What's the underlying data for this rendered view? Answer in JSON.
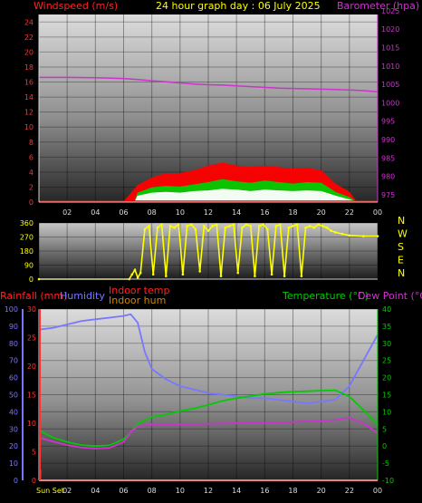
{
  "header": {
    "left_label": "Windspeed (m/s)",
    "title": "24 hour graph day : 06 July 2025",
    "right_label": "Barometer (hpa)"
  },
  "bottom_header": {
    "rainfall": "Rainfall (mm)",
    "humidity": "Humidity",
    "indoor_temp": "Indoor temp",
    "indoor_hum": "Indoor hum",
    "temperature": "Temperature (°C)",
    "dew_point": "Dew Point (°C)"
  },
  "x_tick_labels": [
    "02",
    "04",
    "06",
    "08",
    "10",
    "12",
    "14",
    "16",
    "18",
    "20",
    "22",
    "00"
  ],
  "sunset_label": "Sun Set",
  "compass_labels": [
    "N",
    "W",
    "S",
    "E",
    "N"
  ],
  "colors": {
    "wind": "#ff0000",
    "gust": "#00cc00",
    "wind_avg": "#ffffff",
    "barometer": "#cc33cc",
    "direction": "#ffff00",
    "rain": "#ff3333",
    "humidity": "#7777ff",
    "indoor": "#cc8800",
    "temperature": "#00cc00",
    "dewpoint": "#cc33cc",
    "title": "#ffff00"
  },
  "chart_data": [
    {
      "type": "area",
      "panel": "wind_barometer",
      "x_unit": "hour",
      "x_range": [
        0,
        24
      ],
      "ylabel": "Windspeed (m/s)",
      "ylim": [
        0,
        25
      ],
      "y_ticks": [
        0,
        2,
        4,
        6,
        8,
        10,
        12,
        14,
        16,
        18,
        20,
        22,
        24
      ],
      "y2label": "Barometer (hpa)",
      "y2lim": [
        973,
        1024
      ],
      "y2_ticks": [
        975,
        980,
        985,
        990,
        995,
        1000,
        1005,
        1010,
        1015,
        1020,
        1025
      ],
      "grid": true,
      "series": [
        {
          "name": "Windspeed (m/s)",
          "role": "gust",
          "x": [
            0,
            6,
            7,
            8,
            9,
            10,
            11,
            12,
            13,
            14,
            15,
            16,
            17,
            18,
            19,
            20,
            21,
            22,
            22.5,
            24
          ],
          "values": [
            0,
            0,
            2.2,
            3.2,
            3.8,
            3.8,
            4.2,
            4.8,
            5.2,
            4.8,
            4.6,
            4.8,
            4.6,
            4.4,
            4.5,
            4.2,
            2.4,
            1.3,
            0,
            0
          ]
        },
        {
          "role": "wind",
          "x": [
            0,
            6.8,
            7,
            8,
            9,
            10,
            11,
            12,
            13,
            14,
            15,
            16,
            17,
            18,
            19,
            20,
            21,
            22,
            22.5,
            24
          ],
          "values": [
            0,
            0,
            1.2,
            1.9,
            2.1,
            2.0,
            2.3,
            2.6,
            3.0,
            2.7,
            2.5,
            2.8,
            2.6,
            2.4,
            2.6,
            2.5,
            1.3,
            0.6,
            0,
            0
          ]
        },
        {
          "role": "wind_avg",
          "x": [
            0,
            6.8,
            7,
            8,
            9,
            10,
            11,
            12,
            13,
            14,
            15,
            16,
            17,
            18,
            19,
            20,
            21,
            22,
            22.5,
            24
          ],
          "values": [
            0,
            0,
            0.8,
            1.2,
            1.3,
            1.2,
            1.4,
            1.5,
            1.7,
            1.6,
            1.4,
            1.6,
            1.5,
            1.4,
            1.5,
            1.4,
            0.8,
            0.3,
            0,
            0
          ]
        },
        {
          "name": "Barometer (hpa)",
          "role": "barometer",
          "x": [
            0,
            2,
            4,
            6,
            7,
            8,
            9,
            10,
            11,
            12,
            13,
            14,
            15,
            16,
            17,
            18,
            19,
            20,
            21,
            22,
            23,
            24
          ],
          "values": [
            1006.9,
            1006.9,
            1006.8,
            1006.6,
            1006.3,
            1006.0,
            1005.7,
            1005.4,
            1005.1,
            1004.9,
            1004.8,
            1004.6,
            1004.4,
            1004.2,
            1004.0,
            1003.9,
            1003.8,
            1003.7,
            1003.6,
            1003.5,
            1003.3,
            1003.0
          ]
        }
      ]
    },
    {
      "type": "scatter",
      "panel": "wind_direction",
      "x_range": [
        0,
        24
      ],
      "ylim": [
        0,
        360
      ],
      "y_ticks": [
        0,
        90,
        180,
        270,
        360
      ],
      "series": [
        {
          "role": "direction",
          "x": [
            0,
            6.4,
            6.6,
            6.8,
            7.0,
            7.2,
            7.5,
            7.8,
            8.1,
            8.4,
            8.7,
            9.0,
            9.3,
            9.6,
            9.9,
            10.2,
            10.5,
            10.8,
            11.1,
            11.4,
            11.7,
            12.0,
            12.3,
            12.6,
            12.9,
            13.2,
            13.5,
            13.8,
            14.1,
            14.4,
            14.7,
            15.0,
            15.3,
            15.6,
            15.9,
            16.2,
            16.5,
            16.8,
            17.1,
            17.4,
            17.7,
            18.0,
            18.3,
            18.6,
            18.9,
            19.2,
            19.5,
            19.8,
            20.1,
            20.4,
            20.7,
            21.0,
            21.5,
            22.0,
            23.0,
            24.0
          ],
          "values": [
            0,
            0,
            30,
            60,
            10,
            40,
            320,
            340,
            30,
            330,
            350,
            20,
            340,
            330,
            350,
            30,
            340,
            350,
            320,
            50,
            340,
            310,
            340,
            350,
            20,
            330,
            340,
            350,
            40,
            330,
            350,
            340,
            20,
            340,
            350,
            320,
            30,
            340,
            350,
            20,
            330,
            340,
            350,
            20,
            330,
            340,
            330,
            350,
            340,
            330,
            310,
            300,
            290,
            280,
            275,
            275
          ]
        }
      ]
    },
    {
      "type": "line",
      "panel": "temperature_humidity",
      "x_range": [
        0,
        24
      ],
      "y_left_outer_label": "Humidity",
      "y_left_outer_lim": [
        0,
        100
      ],
      "y_left_outer_ticks": [
        0,
        10,
        20,
        30,
        40,
        50,
        60,
        70,
        80,
        90,
        100
      ],
      "y_left_inner_label": "Rainfall (mm)",
      "y_left_inner_lim": [
        0,
        30
      ],
      "y_left_inner_ticks": [
        0,
        5,
        10,
        15,
        20,
        25,
        30
      ],
      "y_right_label": "Temperature (°C)",
      "y_right_lim": [
        -10,
        40
      ],
      "y_right_ticks": [
        -10,
        -5,
        0,
        5,
        10,
        15,
        20,
        25,
        30,
        35,
        40
      ],
      "grid": true,
      "sunset_hour": 0.1,
      "series": [
        {
          "name": "Humidity",
          "role": "humidity",
          "x": [
            0,
            1,
            2,
            3,
            4,
            5,
            6,
            6.5,
            7,
            7.5,
            8,
            9,
            10,
            11,
            12,
            13,
            14,
            15,
            16,
            17,
            18,
            19,
            20,
            21,
            22,
            23,
            24
          ],
          "values": [
            88,
            89,
            91,
            93,
            94,
            95,
            96,
            97,
            92,
            75,
            65,
            59,
            55,
            53,
            51,
            50,
            49,
            48,
            48,
            47,
            46,
            45,
            46,
            47,
            55,
            70,
            85
          ]
        },
        {
          "name": "Temperature (°C)",
          "role": "temperature",
          "x": [
            0,
            0.5,
            1,
            2,
            3,
            4,
            5,
            6,
            6.5,
            7,
            8,
            9,
            10,
            11,
            12,
            13,
            14,
            15,
            16,
            17,
            18,
            19,
            20,
            21,
            22,
            23,
            24
          ],
          "values": [
            4.8,
            3.5,
            2.5,
            1.2,
            0.3,
            0,
            0.2,
            2,
            4,
            6.5,
            8.5,
            9.2,
            10.2,
            11,
            12,
            13.2,
            14,
            14.6,
            15.2,
            15.6,
            15.9,
            16,
            16.2,
            16.3,
            14.5,
            10.5,
            6.3
          ]
        },
        {
          "name": "Dew Point (°C)",
          "role": "dewpoint",
          "x": [
            0,
            1,
            2,
            3,
            4,
            5,
            6,
            6.5,
            7,
            8,
            9,
            10,
            11,
            12,
            13,
            14,
            15,
            16,
            17,
            18,
            19,
            20,
            21,
            22,
            23,
            24
          ],
          "values": [
            2.5,
            1.3,
            0.3,
            -0.4,
            -0.7,
            -0.5,
            1.2,
            4,
            5.8,
            6.3,
            6.2,
            6.3,
            6.4,
            6.5,
            6.6,
            6.7,
            6.8,
            6.8,
            6.9,
            7,
            7.2,
            7.3,
            7.6,
            8.3,
            6.5,
            3.8
          ]
        },
        {
          "name": "Rainfall (mm)",
          "role": "rain",
          "x": [
            0,
            24
          ],
          "values": [
            0,
            0
          ]
        }
      ]
    }
  ]
}
